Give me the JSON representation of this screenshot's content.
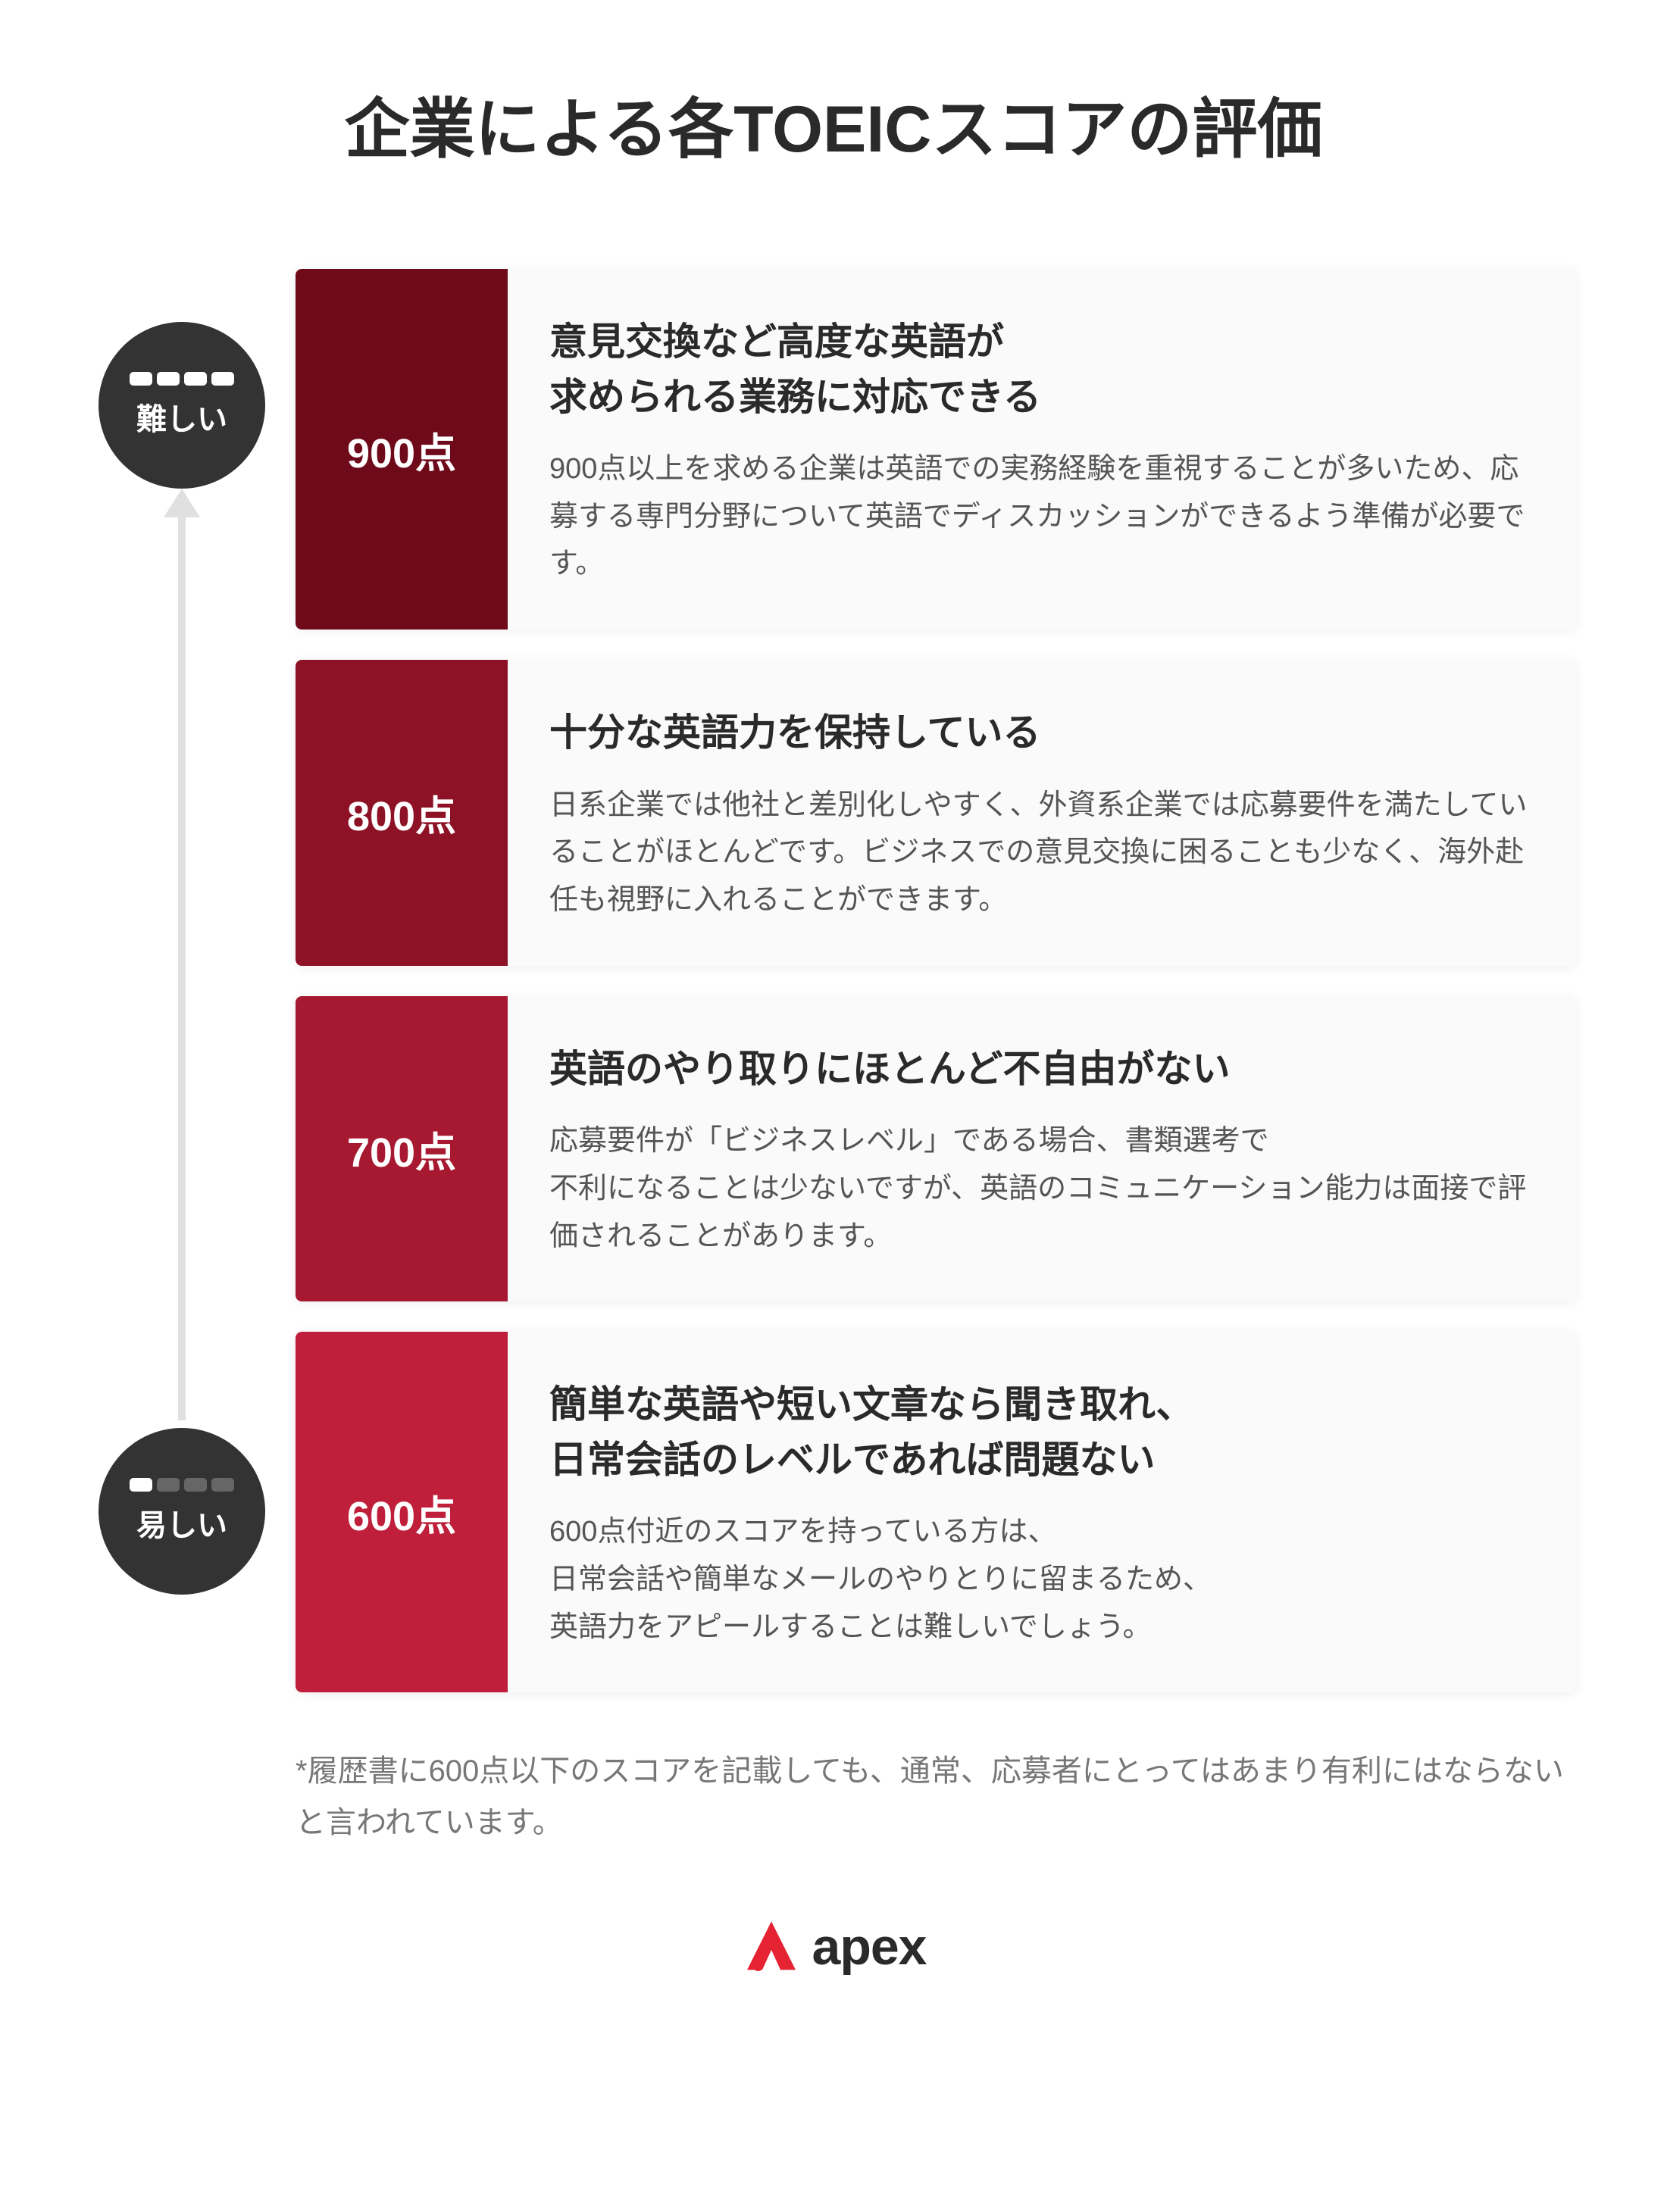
{
  "title": "企業による各TOEICスコアの評価",
  "difficulty": {
    "hard_label": "難しい",
    "easy_label": "易しい",
    "badge_bg": "#333333",
    "badge_text_color": "#ffffff",
    "arrow_color": "#e0e0e0"
  },
  "cards": [
    {
      "score": "900点",
      "color": "#6e0a1a",
      "heading": "意見交換など高度な英語が\n求められる業務に対応できる",
      "body": "900点以上を求める企業は英語での実務経験を重視することが多いため、応募する専門分野について英語でディスカッションができるよう準備が必要です。"
    },
    {
      "score": "800点",
      "color": "#8e1226",
      "heading": "十分な英語力を保持している",
      "body": "日系企業では他社と差別化しやすく、外資系企業では応募要件を満たしていることがほとんどです。ビジネスでの意見交換に困ることも少なく、海外赴任も視野に入れることができます。"
    },
    {
      "score": "700点",
      "color": "#a61930",
      "heading": "英語のやり取りにほとんど不自由がない",
      "body": "応募要件が「ビジネスレベル」である場合、書類選考で\n不利になることは少ないですが、英語のコミュニケーション能力は面接で評価されることがあります。"
    },
    {
      "score": "600点",
      "color": "#bf1f3a",
      "heading": "簡単な英語や短い文章なら聞き取れ、\n日常会話のレベルであれば問題ない",
      "body": "600点付近のスコアを持っている方は、\n日常会話や簡単なメールのやりとりに留まるため、\n英語力をアピールすることは難しいでしょう。"
    }
  ],
  "footnote": "*履歴書に600点以下のスコアを記載しても、通常、応募者にとってはあまり有利にはならないと言われています。",
  "logo_text": "apex",
  "styling": {
    "title_fontsize": 86,
    "heading_fontsize": 50,
    "body_fontsize": 38,
    "score_fontsize": 54,
    "background": "#ffffff",
    "card_bg": "#fafafa",
    "text_dark": "#2a2a2a",
    "text_body": "#555555",
    "text_muted": "#777777",
    "logo_red": "#e52332"
  }
}
